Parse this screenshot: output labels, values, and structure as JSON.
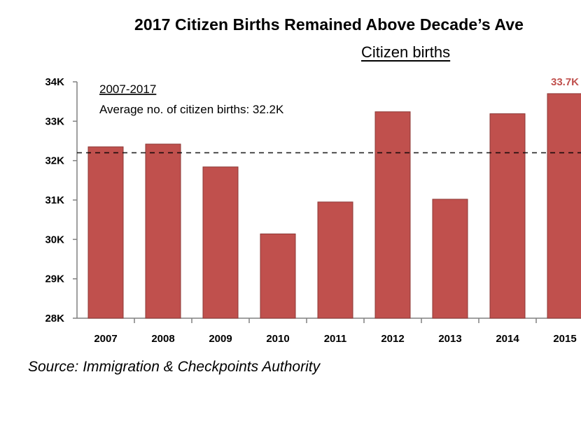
{
  "chart_data": {
    "type": "bar",
    "title": "2017 Citizen Births Remained Above Decade’s Ave",
    "subtitle": "Citizen births",
    "categories": [
      "2007",
      "2008",
      "2009",
      "2010",
      "2011",
      "2012",
      "2013",
      "2014",
      "2015"
    ],
    "values": [
      32350,
      32420,
      31840,
      30140,
      30950,
      33240,
      31020,
      33190,
      33700
    ],
    "ylim": [
      28000,
      34000
    ],
    "y_ticks": [
      28000,
      29000,
      30000,
      31000,
      32000,
      33000,
      34000
    ],
    "y_tick_labels": [
      "28K",
      "29K",
      "30K",
      "31K",
      "32K",
      "33K",
      "34K"
    ],
    "average_line": {
      "value": 32200,
      "style": "dashed"
    },
    "annotation": {
      "line1": "2007-2017",
      "line2": "Average no. of citizen births: 32.2K"
    },
    "highlight_label": {
      "category": "2015",
      "text": "33.7K"
    },
    "bar_color": "#c0504d",
    "bar_edge_color": "#8c3836",
    "highlight_color": "#c0504d",
    "grid": false
  },
  "source": "Source: Immigration & Checkpoints Authority"
}
